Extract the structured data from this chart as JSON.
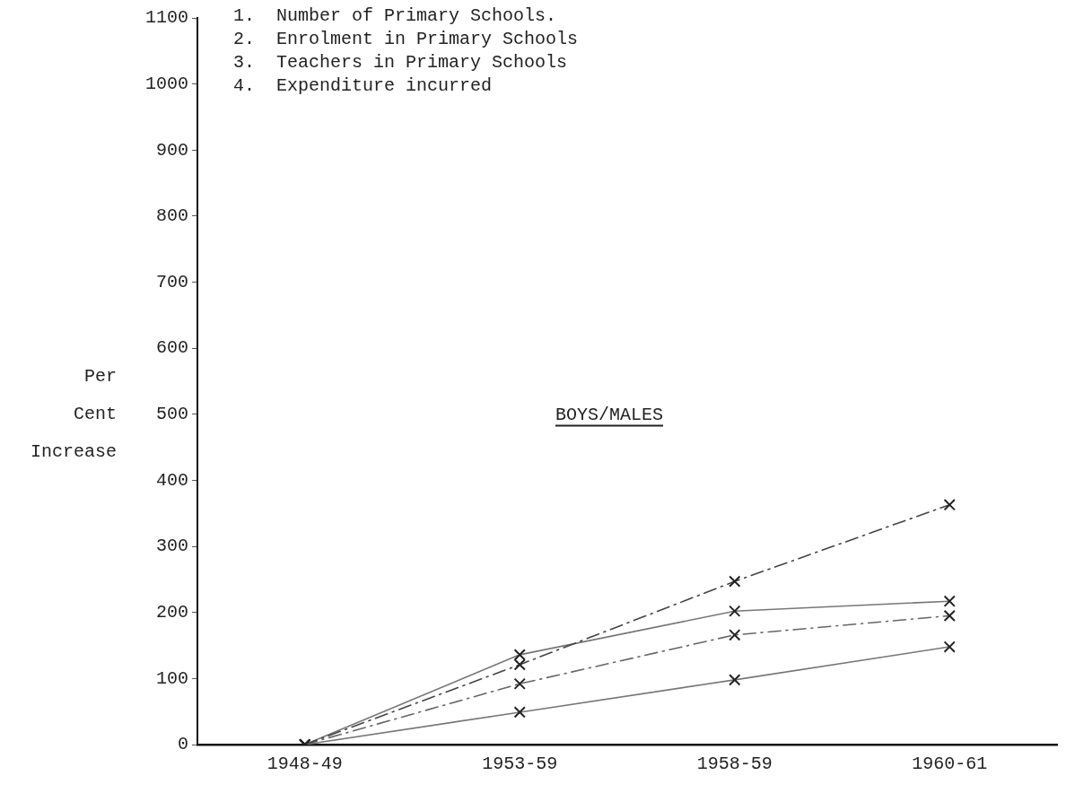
{
  "chart_data": {
    "type": "line",
    "ylabel": "Per Cent Increase",
    "categories": [
      "1948-49",
      "1953-59",
      "1958-59",
      "1960-61"
    ],
    "series": [
      {
        "color": "#444444",
        "line_style": "dashed",
        "values": [
          0,
          121,
          247,
          363
        ]
      },
      {
        "color": "#777777",
        "line_style": "solid",
        "values": [
          0,
          136,
          202,
          217
        ]
      },
      {
        "color": "#666666",
        "line_style": "dashed",
        "values": [
          0,
          92,
          166,
          195
        ]
      },
      {
        "color": "#777777",
        "line_style": "solid",
        "values": [
          0,
          49,
          98,
          148
        ]
      }
    ],
    "ylim": [
      0,
      1100
    ],
    "yticks": [
      0,
      100,
      200,
      300,
      400,
      500,
      600,
      700,
      800,
      900,
      1000,
      1100
    ],
    "grid": false,
    "legend": false,
    "marker": "cross",
    "annotations": [
      "1.  Number of Primary Schools.",
      "2.  Enrolment in Primary Schools",
      "3.  Teachers in Primary Schools",
      "4.  Expenditure incurred",
      "BOYS/MALES"
    ]
  }
}
